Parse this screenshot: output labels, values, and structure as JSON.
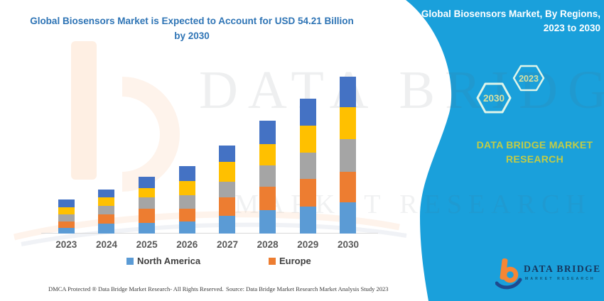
{
  "title": "Global Biosensors Market is Expected to Account for USD 54.21 Billion by 2030",
  "panel": {
    "header": "Global Biosensors Market, By Regions, 2023 to 2030",
    "hexagons": [
      {
        "label": "2030"
      },
      {
        "label": "2023"
      }
    ],
    "brand": "DATA BRIDGE MARKET RESEARCH",
    "bg_color": "#1AA0DB",
    "hex_stroke_color": "#DFF5E9",
    "hex_label_color": "#D9DF9F",
    "brand_color": "#C3CC45"
  },
  "logo": {
    "name": "DATA BRIDGE",
    "sub": "MARKET RESEARCH"
  },
  "legend": [
    {
      "label": "North America",
      "color": "#5B9BD5"
    },
    {
      "label": "Europe",
      "color": "#ED7D31"
    }
  ],
  "watermark": {
    "line1": "DATA BRIDGE",
    "line2": "MARKET RESEARCH"
  },
  "footer": {
    "left": "DMCA Protected ® Data Bridge Market Research-  All Rights Reserved.",
    "right": "Source: Data Bridge Market Research  Market Analysis Study 2023"
  },
  "colors": {
    "title_text": "#2E74B5",
    "axis_labels": "#595959",
    "legend_text": "#3F3F3F",
    "axis_line": "#D9D9D9"
  },
  "chart_data": {
    "type": "bar",
    "stacked": true,
    "title": "Global Biosensors Market is Expected to Account for USD 54.21 Billion by 2030",
    "categories": [
      "2023",
      "2024",
      "2025",
      "2026",
      "2027",
      "2028",
      "2029",
      "2030"
    ],
    "unit": "USD billion (estimated from bar heights; 2030 total = 54.21 per title; no y-axis shown)",
    "series": [
      {
        "name": "North America",
        "color": "#5B9BD5",
        "values": [
          2.0,
          3.4,
          3.7,
          4.2,
          6.1,
          8.1,
          9.4,
          10.9
        ]
      },
      {
        "name": "Europe",
        "color": "#ED7D31",
        "values": [
          2.2,
          3.3,
          4.9,
          4.3,
          6.5,
          8.1,
          9.4,
          10.4
        ]
      },
      {
        "name": "(unlabeled gray series)",
        "color": "#A5A5A5",
        "values": [
          2.5,
          2.9,
          4.0,
          4.7,
          5.3,
          7.4,
          9.2,
          11.3
        ]
      },
      {
        "name": "(unlabeled yellow series)",
        "color": "#FFC000",
        "values": [
          2.5,
          3.0,
          3.1,
          4.9,
          6.9,
          7.4,
          9.2,
          11.0
        ]
      },
      {
        "name": "(unlabeled dark-blue series)",
        "color": "#4472C4",
        "values": [
          2.5,
          2.7,
          3.9,
          5.2,
          5.5,
          7.9,
          9.4,
          10.6
        ]
      }
    ],
    "totals": [
      11.7,
      15.3,
      19.6,
      23.3,
      30.3,
      38.9,
      46.6,
      54.2
    ],
    "xlabel": "",
    "ylabel": "",
    "ylim": [
      0,
      56
    ],
    "grid": false,
    "legend_position": "bottom",
    "legend_visible_entries": [
      "North America",
      "Europe"
    ]
  }
}
